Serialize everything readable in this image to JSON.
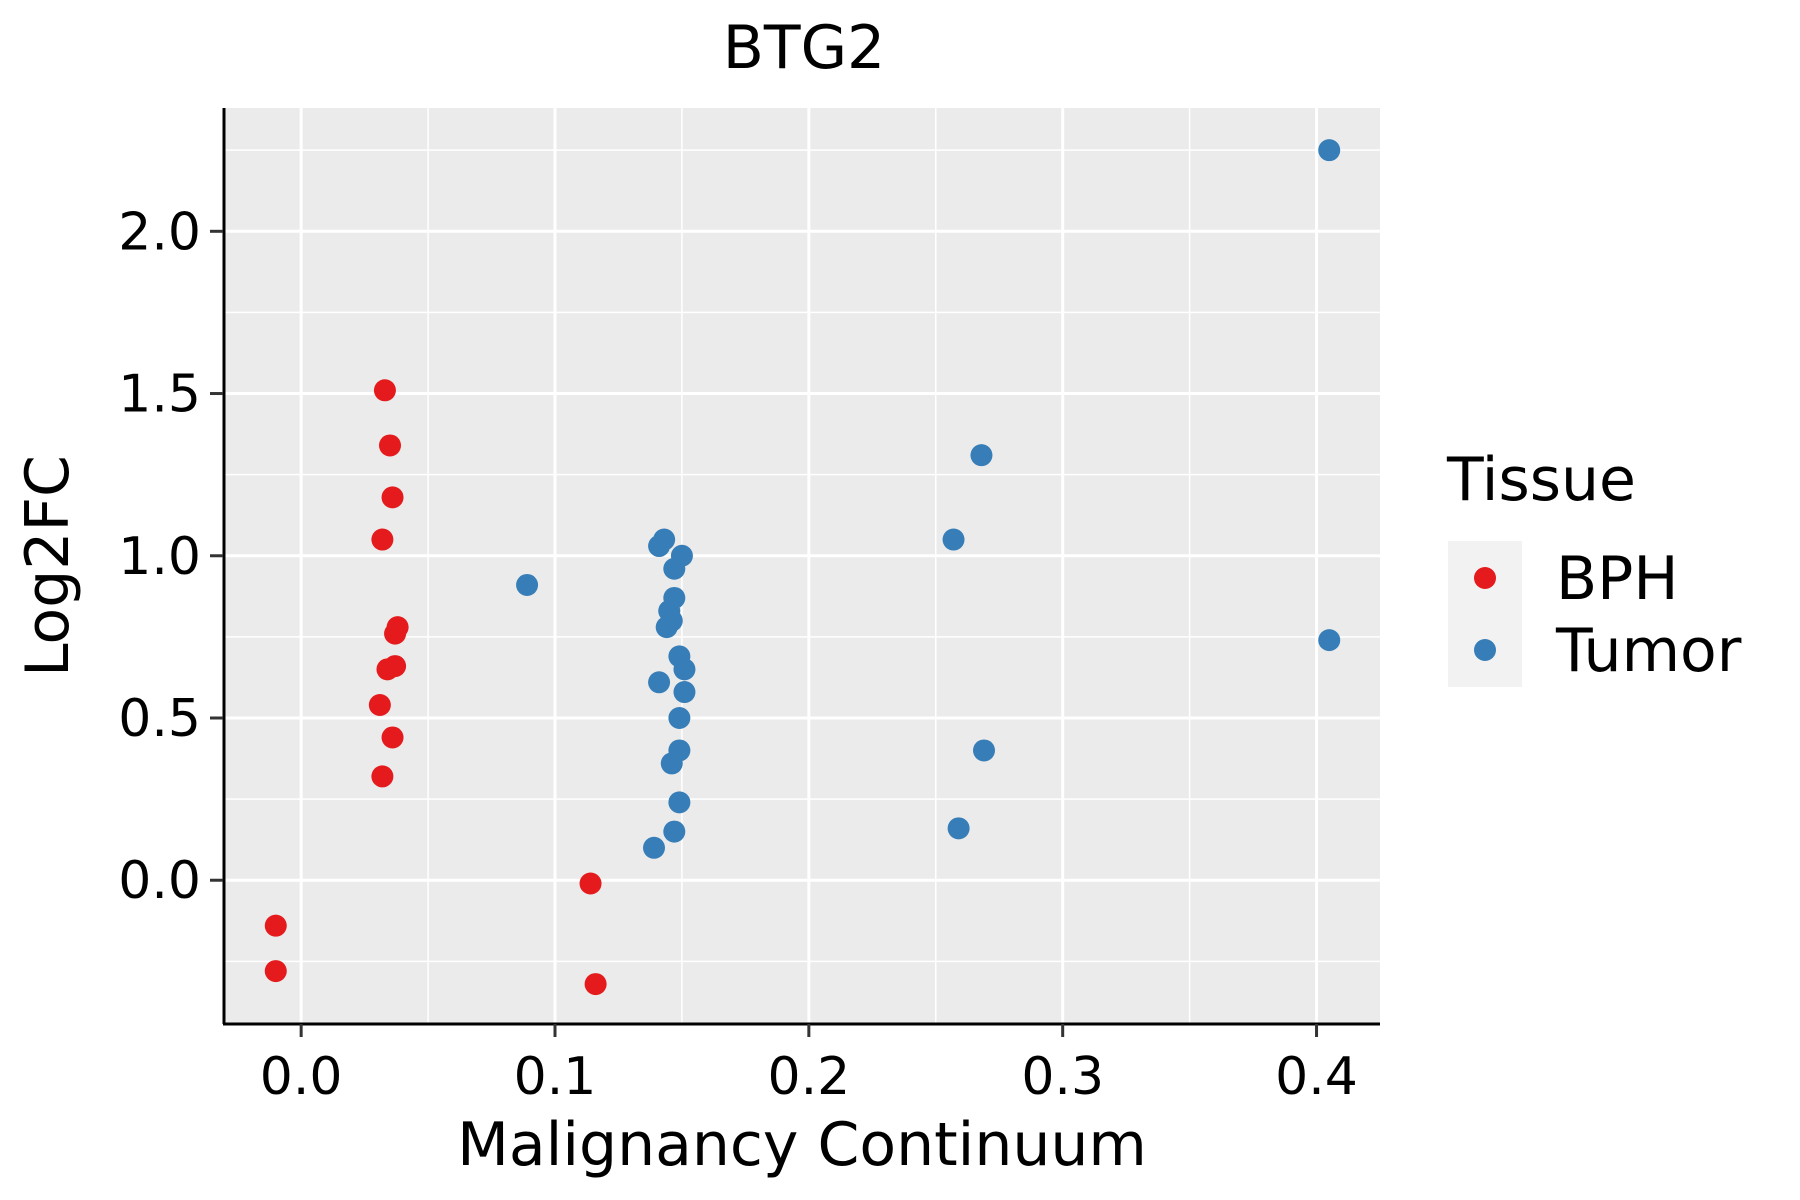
{
  "chart_data": {
    "type": "scatter",
    "title": "BTG2",
    "xlabel": "Malignancy Continuum",
    "ylabel": "Log2FC",
    "xlim": [
      -0.03,
      0.425
    ],
    "ylim": [
      -0.44,
      2.38
    ],
    "x_ticks": [
      0.0,
      0.1,
      0.2,
      0.3,
      0.4
    ],
    "x_tick_labels": [
      "0.0",
      "0.1",
      "0.2",
      "0.3",
      "0.4"
    ],
    "y_ticks": [
      0.0,
      0.5,
      1.0,
      1.5,
      2.0
    ],
    "y_tick_labels": [
      "0.0",
      "0.5",
      "1.0",
      "1.5",
      "2.0"
    ],
    "grid": true,
    "legend": {
      "title": "Tissue",
      "position": "right",
      "entries": [
        {
          "name": "BPH",
          "color": "#E41A1C"
        },
        {
          "name": "Tumor",
          "color": "#377EB8"
        }
      ]
    },
    "series": [
      {
        "name": "BPH",
        "color": "#E41A1C",
        "points": [
          {
            "x": -0.01,
            "y": -0.14
          },
          {
            "x": -0.01,
            "y": -0.28
          },
          {
            "x": 0.033,
            "y": 1.51
          },
          {
            "x": 0.035,
            "y": 1.34
          },
          {
            "x": 0.036,
            "y": 1.18
          },
          {
            "x": 0.032,
            "y": 1.05
          },
          {
            "x": 0.038,
            "y": 0.78
          },
          {
            "x": 0.037,
            "y": 0.76
          },
          {
            "x": 0.034,
            "y": 0.65
          },
          {
            "x": 0.037,
            "y": 0.66
          },
          {
            "x": 0.031,
            "y": 0.54
          },
          {
            "x": 0.036,
            "y": 0.44
          },
          {
            "x": 0.032,
            "y": 0.32
          },
          {
            "x": 0.114,
            "y": -0.01
          },
          {
            "x": 0.116,
            "y": -0.32
          }
        ]
      },
      {
        "name": "Tumor",
        "color": "#377EB8",
        "points": [
          {
            "x": 0.089,
            "y": 0.91
          },
          {
            "x": 0.143,
            "y": 1.05
          },
          {
            "x": 0.141,
            "y": 1.03
          },
          {
            "x": 0.15,
            "y": 1.0
          },
          {
            "x": 0.147,
            "y": 0.96
          },
          {
            "x": 0.147,
            "y": 0.87
          },
          {
            "x": 0.145,
            "y": 0.83
          },
          {
            "x": 0.146,
            "y": 0.8
          },
          {
            "x": 0.144,
            "y": 0.78
          },
          {
            "x": 0.149,
            "y": 0.69
          },
          {
            "x": 0.151,
            "y": 0.65
          },
          {
            "x": 0.141,
            "y": 0.61
          },
          {
            "x": 0.151,
            "y": 0.58
          },
          {
            "x": 0.149,
            "y": 0.5
          },
          {
            "x": 0.149,
            "y": 0.4
          },
          {
            "x": 0.146,
            "y": 0.36
          },
          {
            "x": 0.149,
            "y": 0.24
          },
          {
            "x": 0.147,
            "y": 0.15
          },
          {
            "x": 0.139,
            "y": 0.1
          },
          {
            "x": 0.257,
            "y": 1.05
          },
          {
            "x": 0.268,
            "y": 1.31
          },
          {
            "x": 0.269,
            "y": 0.4
          },
          {
            "x": 0.259,
            "y": 0.16
          },
          {
            "x": 0.405,
            "y": 2.25
          },
          {
            "x": 0.405,
            "y": 0.74
          }
        ]
      }
    ]
  }
}
